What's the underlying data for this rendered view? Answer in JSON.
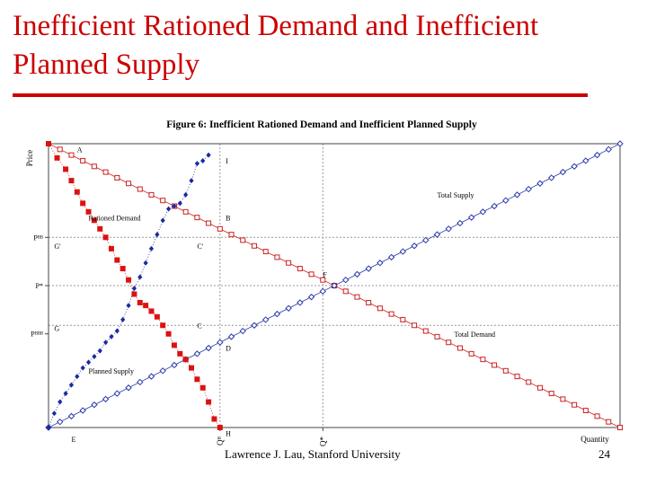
{
  "slide": {
    "title": "Inefficient Rationed Demand and Inefficient Planned Supply",
    "footer": "Lawrence J. Lau, Stanford University",
    "page_number": "24"
  },
  "colors": {
    "title": "#cc0000",
    "rationed_demand": "#dd1111",
    "planned_supply": "#1a2aa0",
    "total_demand": "#cc2222",
    "total_supply": "#2a3aa8",
    "grid": "#999999"
  },
  "chart_data": {
    "type": "line",
    "title": "Figure 6: Inefficient Rationed Demand and Inefficient Planned Supply",
    "xlabel": "Quantity",
    "ylabel": "Price",
    "xlim": [
      0,
      100
    ],
    "ylim": [
      0,
      100
    ],
    "x_ticks": [
      {
        "value": 30,
        "label": "Qᴮ"
      },
      {
        "value": 48,
        "label": "Q*"
      }
    ],
    "y_ticks": [
      {
        "value": 67,
        "label": "Pᴮᴮ"
      },
      {
        "value": 50,
        "label": "P*"
      },
      {
        "value": 33,
        "label": "Pᴮᴮᴮ"
      }
    ],
    "reference_lines": [
      {
        "orientation": "vertical",
        "value": 30
      },
      {
        "orientation": "vertical",
        "value": 48
      },
      {
        "orientation": "horizontal",
        "value": 67
      },
      {
        "orientation": "horizontal",
        "value": 50
      },
      {
        "orientation": "horizontal",
        "value": 36
      }
    ],
    "point_labels": [
      {
        "text": "A",
        "x": 5,
        "y": 97
      },
      {
        "text": "I",
        "x": 31,
        "y": 93
      },
      {
        "text": "B",
        "x": 31,
        "y": 73
      },
      {
        "text": "G'",
        "x": 1,
        "y": 63
      },
      {
        "text": "C'",
        "x": 26,
        "y": 63
      },
      {
        "text": "F",
        "x": 48,
        "y": 53
      },
      {
        "text": "G",
        "x": 1,
        "y": 34
      },
      {
        "text": "C",
        "x": 26,
        "y": 35
      },
      {
        "text": "D",
        "x": 31,
        "y": 27
      },
      {
        "text": "E",
        "x": 4,
        "y": -5
      },
      {
        "text": "H",
        "x": 31,
        "y": -3
      }
    ],
    "series_labels": [
      {
        "text": "Total Supply",
        "x": 68,
        "y": 81
      },
      {
        "text": "Total Demand",
        "x": 71,
        "y": 32
      },
      {
        "text": "Rationed Demand",
        "x": 7,
        "y": 73
      },
      {
        "text": "Planned Supply",
        "x": 7,
        "y": 19
      }
    ],
    "series": [
      {
        "name": "Total Demand",
        "style": "hollow-square",
        "x": [
          0,
          2,
          4,
          6,
          8,
          10,
          12,
          14,
          16,
          18,
          20,
          22,
          24,
          26,
          28,
          30,
          32,
          34,
          36,
          38,
          40,
          42,
          44,
          46,
          48,
          50,
          52,
          54,
          56,
          58,
          60,
          62,
          64,
          66,
          68,
          70,
          72,
          74,
          76,
          78,
          80,
          82,
          84,
          86,
          88,
          90,
          92,
          94,
          96,
          98,
          100
        ],
        "values": [
          100,
          98,
          96,
          94,
          92,
          90,
          88,
          86,
          84,
          82,
          80,
          78,
          76,
          74,
          72,
          70,
          68,
          66,
          64,
          62,
          60,
          58,
          56,
          54,
          52,
          50,
          48,
          46,
          44,
          42,
          40,
          38,
          36,
          34,
          32,
          30,
          28,
          26,
          24,
          22,
          20,
          18,
          16,
          14,
          12,
          10,
          8,
          6,
          4,
          2,
          0
        ]
      },
      {
        "name": "Total Supply",
        "style": "hollow-diamond",
        "x": [
          0,
          2,
          4,
          6,
          8,
          10,
          12,
          14,
          16,
          18,
          20,
          22,
          24,
          26,
          28,
          30,
          32,
          34,
          36,
          38,
          40,
          42,
          44,
          46,
          48,
          50,
          52,
          54,
          56,
          58,
          60,
          62,
          64,
          66,
          68,
          70,
          72,
          74,
          76,
          78,
          80,
          82,
          84,
          86,
          88,
          90,
          92,
          94,
          96,
          98,
          100
        ],
        "values": [
          0,
          2,
          4,
          6,
          8,
          10,
          12,
          14,
          16,
          18,
          20,
          22,
          24,
          26,
          28,
          30,
          32,
          34,
          36,
          38,
          40,
          42,
          44,
          46,
          48,
          50,
          52,
          54,
          56,
          58,
          60,
          62,
          64,
          66,
          68,
          70,
          72,
          74,
          76,
          78,
          80,
          82,
          84,
          86,
          88,
          90,
          92,
          94,
          96,
          98,
          100
        ]
      },
      {
        "name": "Rationed Demand",
        "style": "filled-square",
        "x": [
          0,
          1.5,
          3,
          4,
          5,
          6,
          7,
          8,
          9,
          10,
          11,
          12,
          13,
          14,
          15,
          16,
          17,
          18,
          19,
          20,
          21,
          22,
          23,
          24,
          25,
          26,
          27,
          28,
          29,
          30
        ],
        "values": [
          100,
          95,
          91,
          87,
          83,
          79,
          76,
          73,
          70,
          67,
          63,
          59,
          56,
          52,
          47,
          44,
          43,
          41,
          39,
          36,
          33,
          29,
          26,
          24,
          21,
          17,
          14,
          9,
          3,
          0
        ]
      },
      {
        "name": "Planned Supply",
        "style": "filled-diamond",
        "x": [
          0,
          1,
          2,
          3,
          4,
          5,
          6,
          7,
          8,
          9,
          10,
          11,
          12,
          13,
          14,
          15,
          16,
          17,
          18,
          19,
          20,
          21,
          22,
          23,
          24,
          25,
          26,
          27,
          28
        ],
        "values": [
          0,
          5,
          9,
          12,
          15,
          18,
          21,
          23,
          25,
          27,
          30,
          32,
          34,
          38,
          43,
          49,
          53,
          58,
          63,
          68,
          73,
          77,
          78,
          79,
          82,
          87,
          93,
          94,
          96
        ]
      }
    ]
  }
}
